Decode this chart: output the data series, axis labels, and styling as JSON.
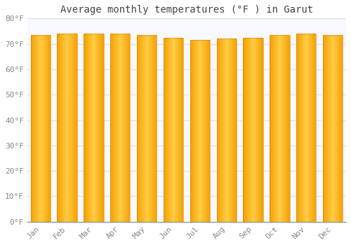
{
  "title": "Average monthly temperatures (°F ) in Garut",
  "months": [
    "Jan",
    "Feb",
    "Mar",
    "Apr",
    "May",
    "Jun",
    "Jul",
    "Aug",
    "Sep",
    "Oct",
    "Nov",
    "Dec"
  ],
  "values": [
    73.5,
    74.0,
    74.0,
    74.0,
    73.5,
    72.5,
    71.5,
    72.0,
    72.5,
    73.5,
    74.0,
    73.5
  ],
  "ylim": [
    0,
    80
  ],
  "yticks": [
    0,
    10,
    20,
    30,
    40,
    50,
    60,
    70,
    80
  ],
  "ytick_labels": [
    "0°F",
    "10°F",
    "20°F",
    "30°F",
    "40°F",
    "50°F",
    "60°F",
    "70°F",
    "80°F"
  ],
  "bar_color_center": "#FFCC44",
  "bar_color_edge": "#F5A000",
  "background_color": "#FFFFFF",
  "plot_bg_color": "#F8F8FF",
  "grid_color": "#E0E0E8",
  "title_fontsize": 10,
  "tick_fontsize": 8,
  "bar_width": 0.75
}
